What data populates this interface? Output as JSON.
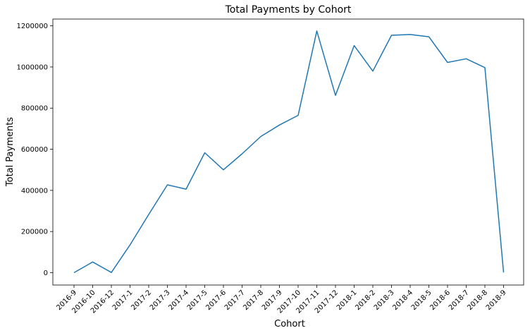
{
  "chart_data": {
    "type": "line",
    "title": "Total Payments by Cohort",
    "xlabel": "Cohort",
    "ylabel": "Total Payments",
    "categories": [
      "2016-9",
      "2016-10",
      "2016-12",
      "2017-1",
      "2017-2",
      "2017-3",
      "2017-4",
      "2017-5",
      "2017-6",
      "2017-7",
      "2017-8",
      "2017-9",
      "2017-10",
      "2017-11",
      "2017-12",
      "2018-1",
      "2018-2",
      "2018-3",
      "2018-4",
      "2018-5",
      "2018-6",
      "2018-7",
      "2018-8",
      "2018-9"
    ],
    "series": [
      {
        "color": "#1f77b4",
        "values": [
          0,
          52000,
          1000,
          135000,
          283000,
          427000,
          406000,
          583000,
          500000,
          578000,
          662000,
          718000,
          765000,
          1175000,
          862000,
          1104000,
          980000,
          1154000,
          1158000,
          1147000,
          1022000,
          1040000,
          997000,
          1000
        ]
      }
    ],
    "yticks": [
      0,
      200000,
      400000,
      600000,
      800000,
      1000000,
      1200000
    ],
    "ylim": [
      -60000,
      1233000
    ],
    "grid": false,
    "legend": "none"
  }
}
